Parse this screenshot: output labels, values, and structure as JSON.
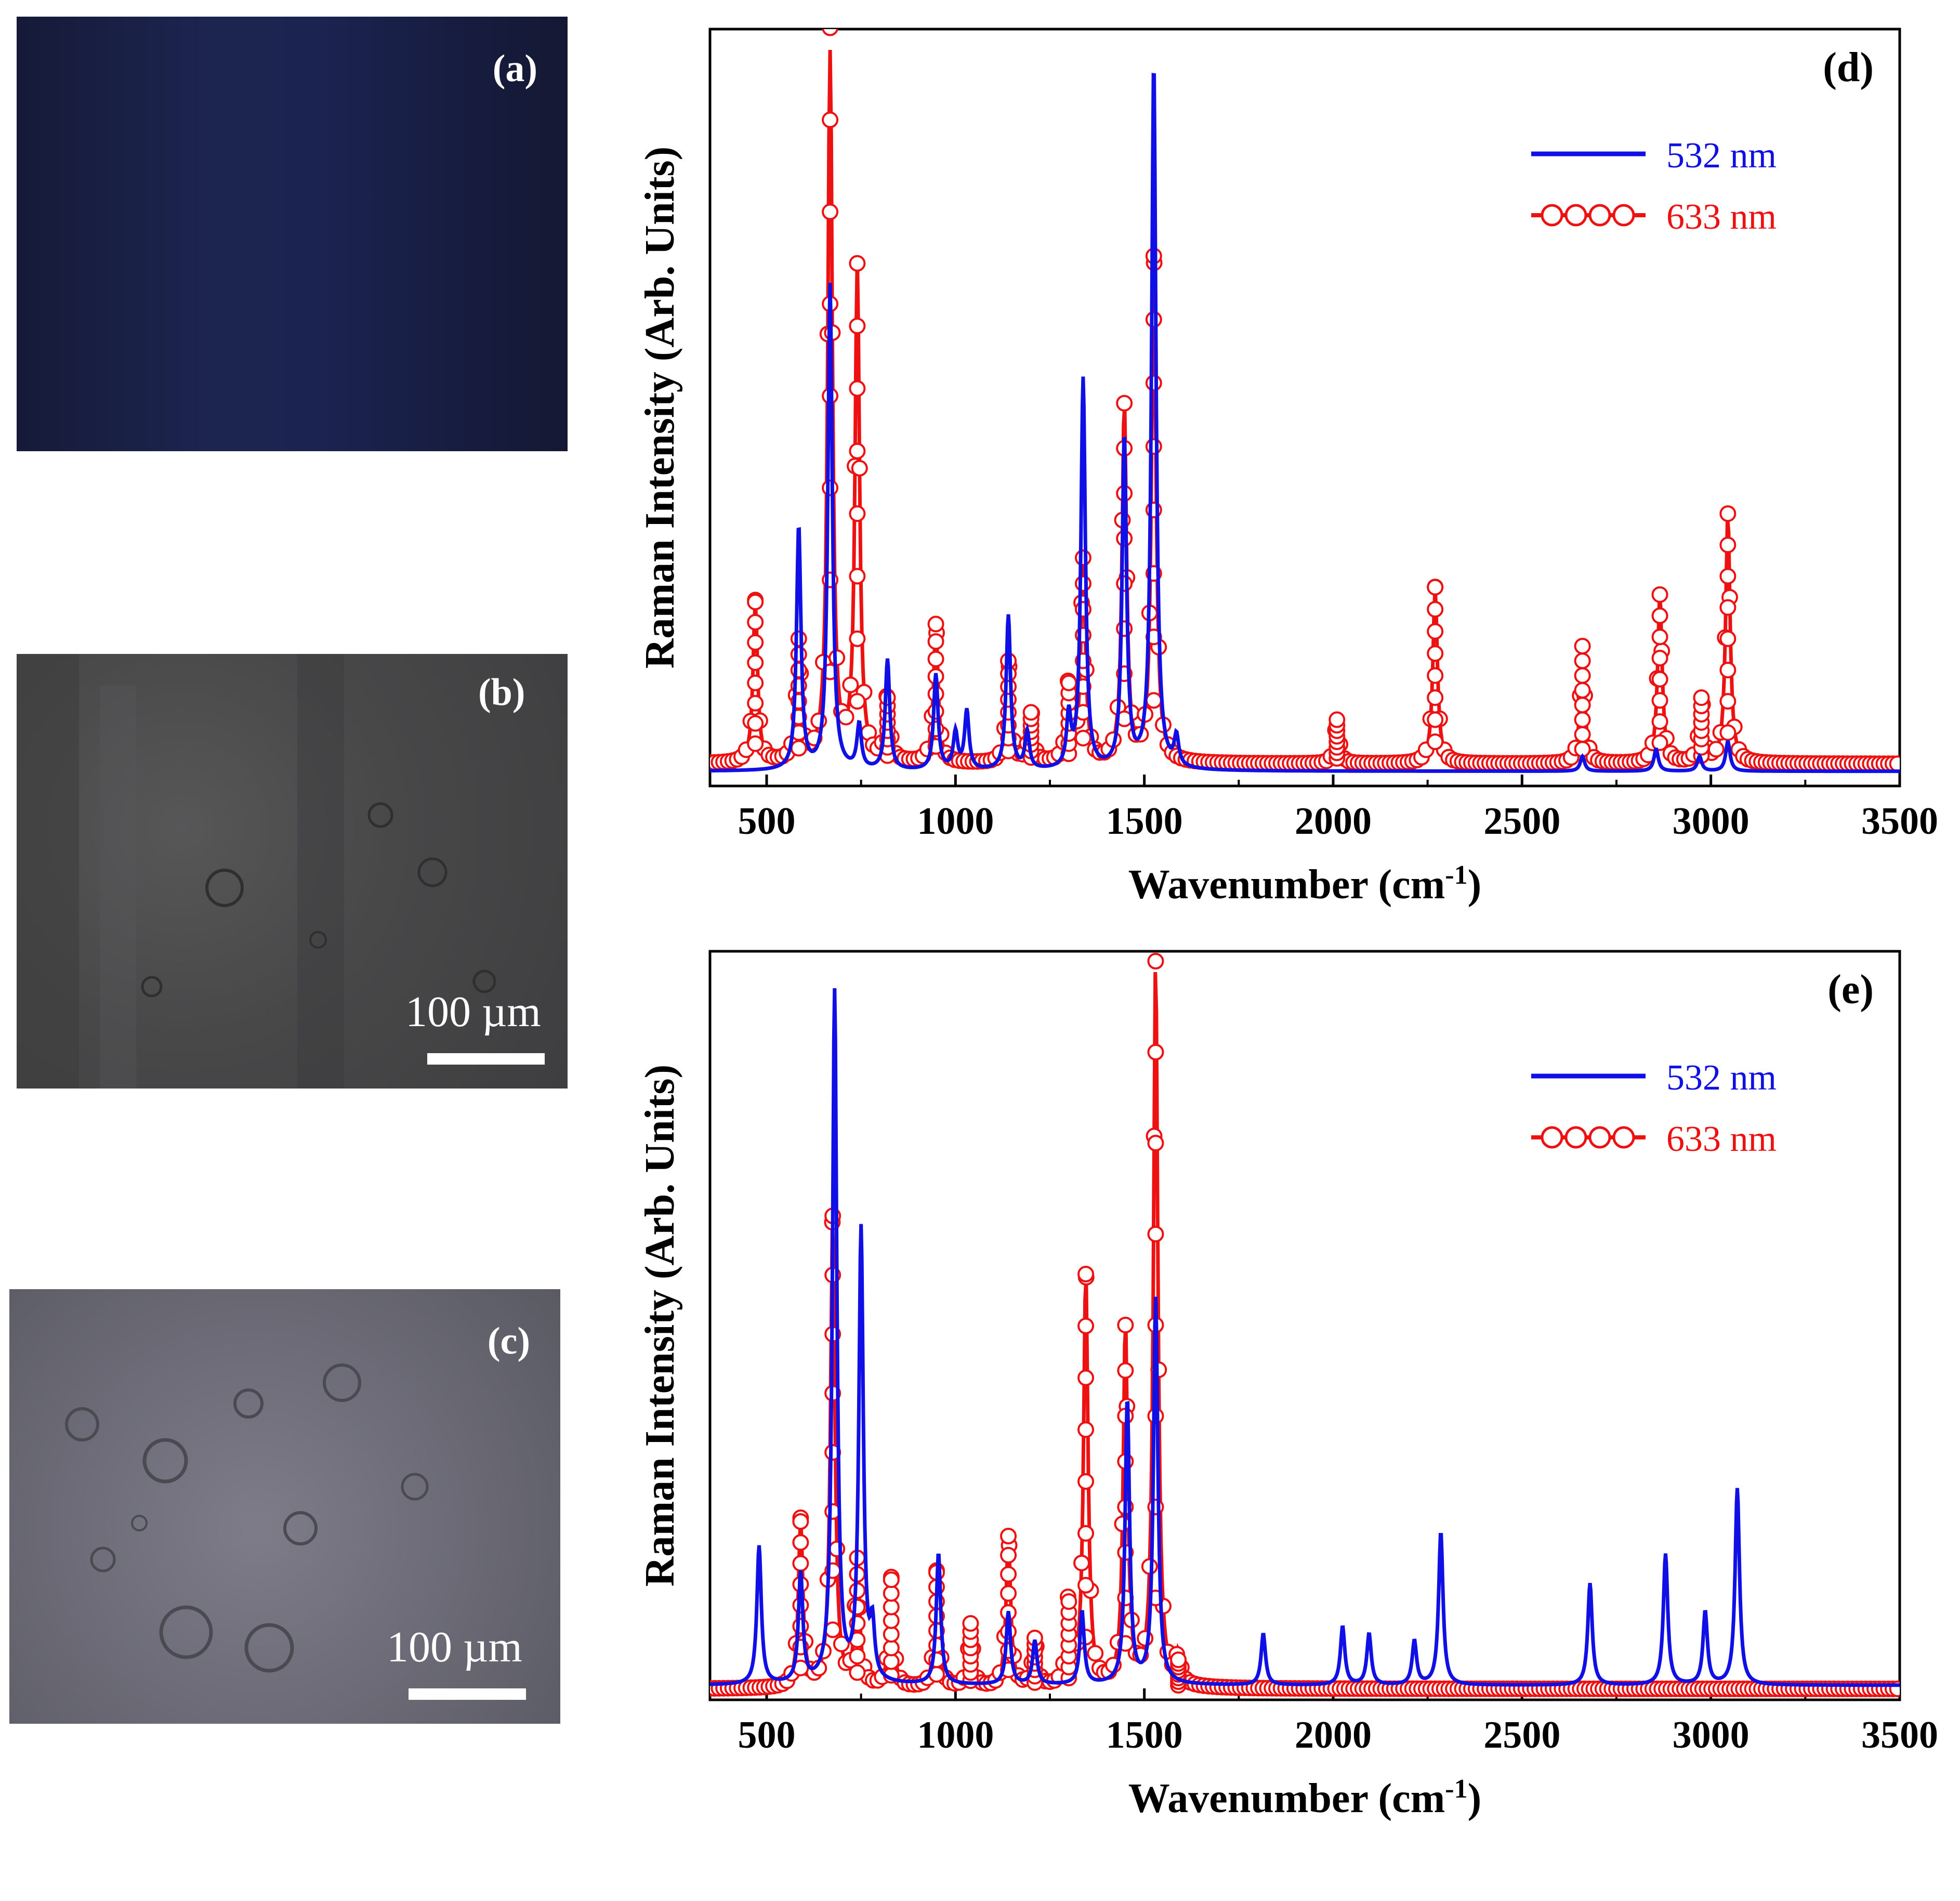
{
  "micrographs": [
    {
      "tag": "(a)",
      "scalebar_label": "",
      "base_color": "#181c3c"
    },
    {
      "tag": "(b)",
      "scalebar_label": "100 µm",
      "base_color": "#4a4a4c"
    },
    {
      "tag": "(c)",
      "scalebar_label": "100 µm",
      "base_color": "#6d6c78"
    }
  ],
  "legend": {
    "blue": "532 nm",
    "red": "633 nm"
  },
  "colors": {
    "blue": "#1010e6",
    "red": "#ee1111"
  },
  "chart_data": [
    {
      "type": "line",
      "panel_label": "(d)",
      "xlabel": "Wavenumber (cm-1)",
      "ylabel": "Raman Intensity (Arb. Units)",
      "xlim": [
        350,
        3500
      ],
      "ylim": [
        0,
        1.0
      ],
      "xticks": [
        500,
        1000,
        1500,
        2000,
        2500,
        3000,
        3500
      ],
      "series": [
        {
          "name": "532 nm",
          "style": "line",
          "baseline": 0.02,
          "peaks": [
            [
              585,
              0.33
            ],
            [
              668,
              0.66
            ],
            [
              745,
              0.06
            ],
            [
              820,
              0.15
            ],
            [
              948,
              0.13
            ],
            [
              1000,
              0.05
            ],
            [
              1030,
              0.08
            ],
            [
              1140,
              0.21
            ],
            [
              1190,
              0.05
            ],
            [
              1300,
              0.07
            ],
            [
              1338,
              0.53
            ],
            [
              1447,
              0.45
            ],
            [
              1525,
              0.96
            ],
            [
              1585,
              0.04
            ],
            [
              2660,
              0.02
            ],
            [
              2855,
              0.03
            ],
            [
              2970,
              0.02
            ],
            [
              3045,
              0.04
            ]
          ]
        },
        {
          "name": "633 nm",
          "style": "circles",
          "baseline": 0.03,
          "peaks": [
            [
              470,
              0.22
            ],
            [
              585,
              0.17
            ],
            [
              668,
              1.0
            ],
            [
              740,
              0.68
            ],
            [
              820,
              0.09
            ],
            [
              948,
              0.19
            ],
            [
              1140,
              0.14
            ],
            [
              1200,
              0.07
            ],
            [
              1300,
              0.11
            ],
            [
              1338,
              0.28
            ],
            [
              1447,
              0.49
            ],
            [
              1525,
              0.69
            ],
            [
              2010,
              0.06
            ],
            [
              2270,
              0.24
            ],
            [
              2660,
              0.16
            ],
            [
              2865,
              0.23
            ],
            [
              2975,
              0.09
            ],
            [
              3045,
              0.34
            ]
          ]
        }
      ]
    },
    {
      "type": "line",
      "panel_label": "(e)",
      "xlabel": "Wavenumber (cm-1)",
      "ylabel": "Raman Intensity (Arb. Units)",
      "xlim": [
        350,
        3500
      ],
      "ylim": [
        0,
        1.0
      ],
      "xticks": [
        500,
        1000,
        1500,
        2000,
        2500,
        3000,
        3500
      ],
      "series": [
        {
          "name": "532 nm",
          "style": "line",
          "baseline": 0.02,
          "peaks": [
            [
              480,
              0.19
            ],
            [
              590,
              0.15
            ],
            [
              680,
              0.95
            ],
            [
              750,
              0.62
            ],
            [
              780,
              0.07
            ],
            [
              955,
              0.18
            ],
            [
              1140,
              0.1
            ],
            [
              1210,
              0.06
            ],
            [
              1335,
              0.1
            ],
            [
              1455,
              0.39
            ],
            [
              1530,
              0.53
            ],
            [
              1815,
              0.07
            ],
            [
              2025,
              0.08
            ],
            [
              2095,
              0.07
            ],
            [
              2215,
              0.06
            ],
            [
              2285,
              0.21
            ],
            [
              2680,
              0.14
            ],
            [
              2880,
              0.18
            ],
            [
              2985,
              0.1
            ],
            [
              3070,
              0.27
            ]
          ]
        },
        {
          "name": "633 nm",
          "style": "circles",
          "baseline": 0.015,
          "peaks": [
            [
              590,
              0.23
            ],
            [
              675,
              0.65
            ],
            [
              740,
              0.18
            ],
            [
              830,
              0.15
            ],
            [
              950,
              0.16
            ],
            [
              1040,
              0.09
            ],
            [
              1140,
              0.21
            ],
            [
              1210,
              0.07
            ],
            [
              1300,
              0.12
            ],
            [
              1345,
              0.57
            ],
            [
              1450,
              0.5
            ],
            [
              1530,
              1.0
            ],
            [
              1590,
              0.04
            ]
          ]
        }
      ]
    }
  ]
}
